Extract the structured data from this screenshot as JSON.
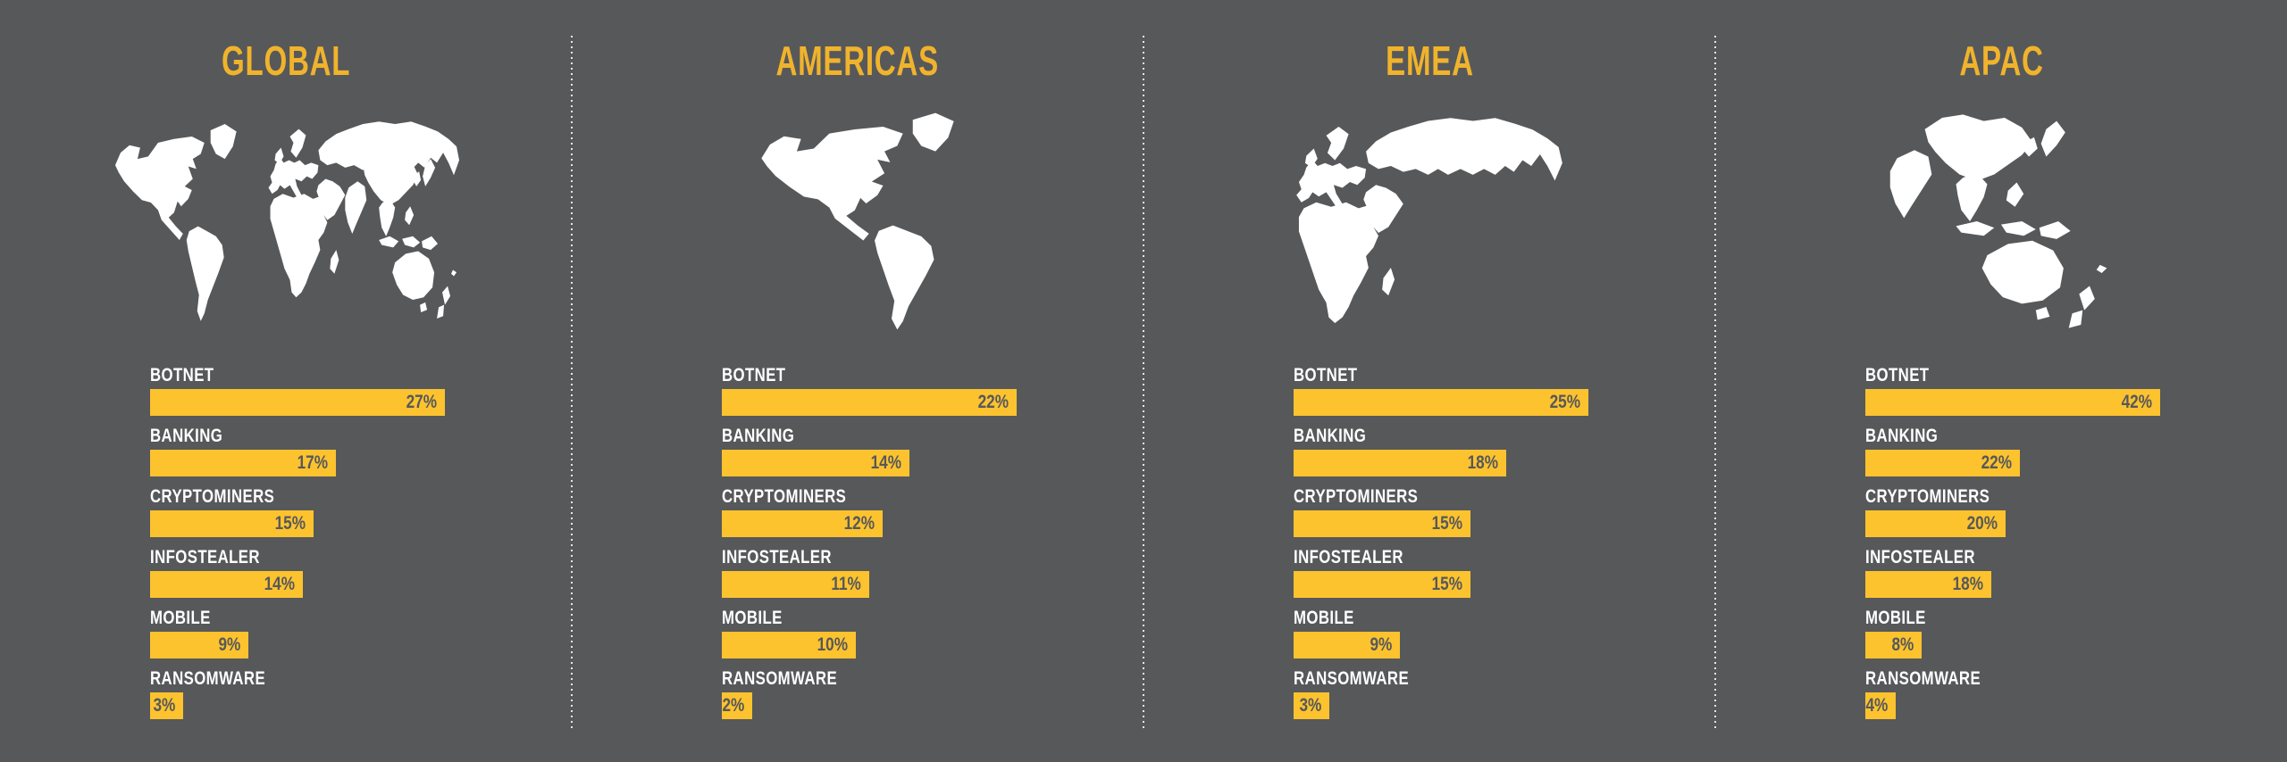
{
  "page": {
    "background_color": "#57585A",
    "title_color": "#F0B32C",
    "bar_color": "#FCC32F",
    "label_color": "#FFFFFF",
    "value_color": "#57585A",
    "map_color": "#FFFFFF",
    "divider_color": "#FFFFFF"
  },
  "chart_data": [
    {
      "type": "bar",
      "orientation": "horizontal",
      "region": "GLOBAL",
      "map": "world",
      "unit": "%",
      "categories": [
        "BOTNET",
        "BANKING",
        "CRYPTOMINERS",
        "INFOSTEALER",
        "MOBILE",
        "RANSOMWARE"
      ],
      "values": [
        27,
        17,
        15,
        14,
        9,
        3
      ],
      "value_labels": [
        "27%",
        "17%",
        "15%",
        "14%",
        "9%",
        "3%"
      ],
      "layout_note": "bars scaled relative to panel maximum"
    },
    {
      "type": "bar",
      "orientation": "horizontal",
      "region": "AMERICAS",
      "map": "americas",
      "unit": "%",
      "categories": [
        "BOTNET",
        "BANKING",
        "CRYPTOMINERS",
        "INFOSTEALER",
        "MOBILE",
        "RANSOMWARE"
      ],
      "values": [
        22,
        14,
        12,
        11,
        10,
        2
      ],
      "value_labels": [
        "22%",
        "14%",
        "12%",
        "11%",
        "10%",
        "2%"
      ],
      "layout_note": "bars scaled relative to panel maximum"
    },
    {
      "type": "bar",
      "orientation": "horizontal",
      "region": "EMEA",
      "map": "emea",
      "unit": "%",
      "categories": [
        "BOTNET",
        "BANKING",
        "CRYPTOMINERS",
        "INFOSTEALER",
        "MOBILE",
        "RANSOMWARE"
      ],
      "values": [
        25,
        18,
        15,
        15,
        9,
        3
      ],
      "value_labels": [
        "25%",
        "18%",
        "15%",
        "15%",
        "9%",
        "3%"
      ],
      "layout_note": "bars scaled relative to panel maximum"
    },
    {
      "type": "bar",
      "orientation": "horizontal",
      "region": "APAC",
      "map": "apac",
      "unit": "%",
      "categories": [
        "BOTNET",
        "BANKING",
        "CRYPTOMINERS",
        "INFOSTEALER",
        "MOBILE",
        "RANSOMWARE"
      ],
      "values": [
        42,
        22,
        20,
        18,
        8,
        4
      ],
      "value_labels": [
        "42%",
        "22%",
        "20%",
        "18%",
        "8%",
        "4%"
      ],
      "layout_note": "bars scaled relative to panel maximum"
    }
  ]
}
